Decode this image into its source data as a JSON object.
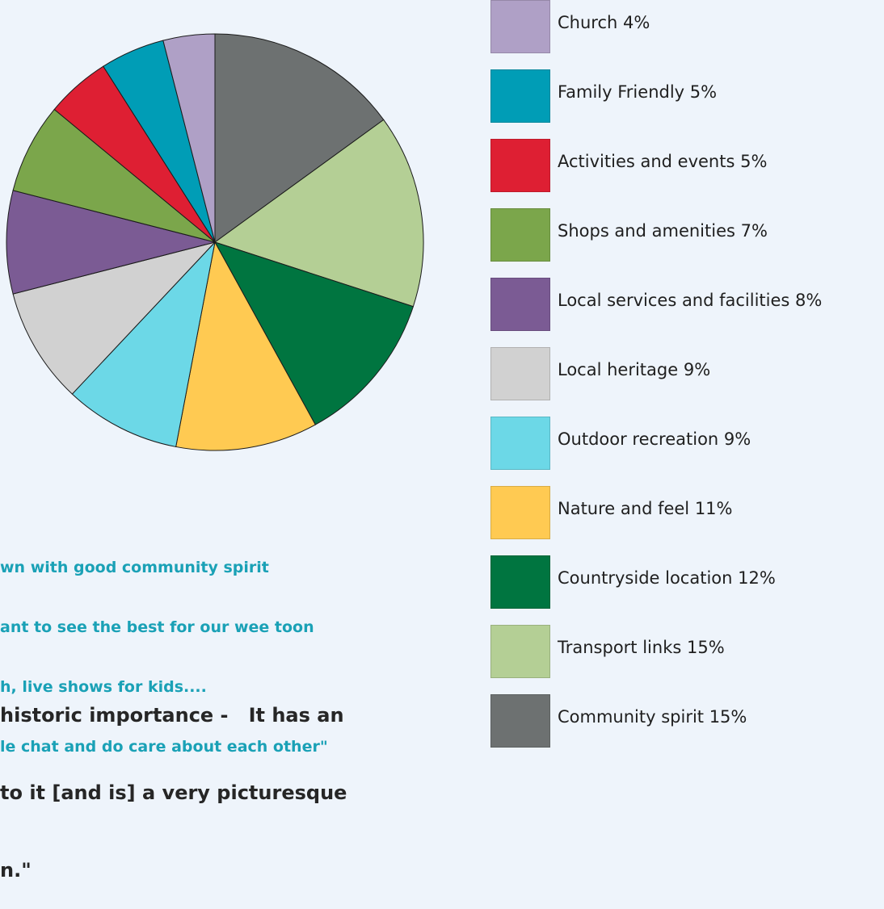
{
  "chart_data": {
    "type": "pie",
    "slices": [
      {
        "label": "Community spirit",
        "value": 15,
        "color": "#6d7171"
      },
      {
        "label": "Transport links",
        "value": 15,
        "color": "#b4cf95"
      },
      {
        "label": "Countryside location",
        "value": 12,
        "color": "#007540"
      },
      {
        "label": "Nature and feel",
        "value": 11,
        "color": "#ffca52"
      },
      {
        "label": "Outdoor recreation",
        "value": 9,
        "color": "#6cd8e7"
      },
      {
        "label": "Local heritage",
        "value": 9,
        "color": "#d1d1d1"
      },
      {
        "label": "Local services and facilities",
        "value": 8,
        "color": "#7b5b94"
      },
      {
        "label": "Shops and amenities",
        "value": 7,
        "color": "#7ba64b"
      },
      {
        "label": "Activities and events",
        "value": 5,
        "color": "#de1f33"
      },
      {
        "label": "Family Friendly",
        "value": 5,
        "color": "#009db6"
      },
      {
        "label": "Church",
        "value": 4,
        "color": "#afa0c6"
      }
    ],
    "legend_position": "right"
  },
  "legend": [
    {
      "text": "Church 4%",
      "color": "#afa0c6"
    },
    {
      "text": "Family Friendly 5%",
      "color": "#009db6"
    },
    {
      "text": "Activities and events 5%",
      "color": "#de1f33"
    },
    {
      "text": "Shops and amenities 7%",
      "color": "#7ba64b"
    },
    {
      "text": "Local services and facilities 8%",
      "color": "#7b5b94"
    },
    {
      "text": "Local heritage 9%",
      "color": "#d1d1d1"
    },
    {
      "text": "Outdoor recreation 9%",
      "color": "#6cd8e7"
    },
    {
      "text": "Nature and feel 11%",
      "color": "#ffca52"
    },
    {
      "text": "Countryside location 12%",
      "color": "#007540"
    },
    {
      "text": "Transport links 15%",
      "color": "#b4cf95"
    },
    {
      "text": "Community spirit 15%",
      "color": "#6d7171"
    }
  ],
  "quotes": {
    "teal_lines": [
      "wn with good community spirit",
      "ant to see the best for our wee toon",
      "h, live shows for kids....",
      "le chat and do care about each other\""
    ],
    "dark_lines": [
      "historic importance -   It has an",
      "to it [and is] a very picturesque",
      "n.\""
    ],
    "teal_color": "#1aa1b6",
    "dark_color": "#262626"
  }
}
